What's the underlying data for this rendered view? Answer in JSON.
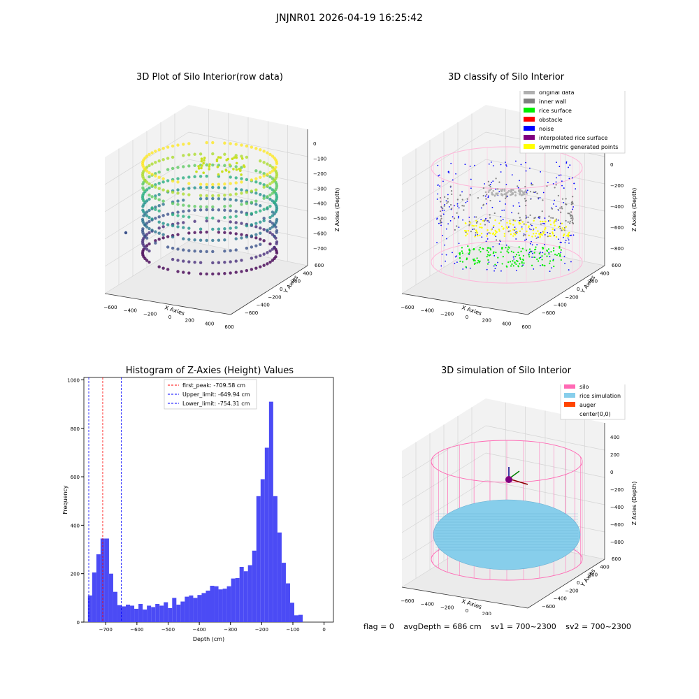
{
  "header": {
    "title": "JNJNR01 2026-04-19 16:25:42"
  },
  "chart_data": [
    {
      "type": "scatter",
      "title": "3D Plot of Silo Interior(row data)",
      "xlabel": "X Axies",
      "ylabel": "Y Axies",
      "zlabel": "Z Axies (Depth)",
      "x_ticks": [
        "−600",
        "−400",
        "−200",
        "0",
        "200",
        "400",
        "600"
      ],
      "y_ticks": [
        "−600",
        "−400",
        "−200",
        "0",
        "200",
        "400",
        "600"
      ],
      "z_ticks": [
        "0",
        "−100",
        "−200",
        "−300",
        "−400",
        "−500",
        "−600",
        "−700"
      ],
      "colormap": "viridis",
      "grid": true
    },
    {
      "type": "scatter",
      "title": "3D classify of Silo Interior",
      "xlabel": "X Axies",
      "ylabel": "Y Axies",
      "zlabel": "Z Axies (Depth)",
      "x_ticks": [
        "−600",
        "−400",
        "−200",
        "0",
        "200",
        "400",
        "600"
      ],
      "y_ticks": [
        "−600",
        "−400",
        "−200",
        "0",
        "200",
        "400",
        "600"
      ],
      "z_ticks": [
        "200",
        "0",
        "−200",
        "−400",
        "−600",
        "−800"
      ],
      "legend_position": "top-right",
      "legend": [
        {
          "label": "original data",
          "color": "#b0b0b0"
        },
        {
          "label": "inner wall",
          "color": "#808080"
        },
        {
          "label": "rice surface",
          "color": "#00ee00"
        },
        {
          "label": "obstacle",
          "color": "#ff0000"
        },
        {
          "label": "noise",
          "color": "#0000ff"
        },
        {
          "label": "interpolated rice surface",
          "color": "#800080"
        },
        {
          "label": "symmetric generated points",
          "color": "#ffff00"
        }
      ]
    },
    {
      "type": "bar",
      "title": "Histogram of Z-Axies (Height) Values",
      "xlabel": "Depth (cm)",
      "ylabel": "Frequency",
      "xlim": [
        -770,
        30
      ],
      "ylim": [
        0,
        1010
      ],
      "x_ticks": [
        -700,
        -600,
        -500,
        -400,
        -300,
        -200,
        -100,
        0
      ],
      "x_tick_labels": [
        "−700",
        "−600",
        "−500",
        "−400",
        "−300",
        "−200",
        "−100",
        "0"
      ],
      "y_ticks": [
        0,
        200,
        400,
        600,
        800,
        1000
      ],
      "bar_color": "#4b4bf5",
      "bin_start": -757,
      "bin_width": 13.5,
      "values": [
        110,
        205,
        280,
        345,
        345,
        200,
        125,
        70,
        65,
        72,
        68,
        55,
        75,
        52,
        68,
        62,
        75,
        68,
        82,
        58,
        100,
        72,
        85,
        105,
        110,
        100,
        112,
        120,
        130,
        150,
        148,
        135,
        138,
        148,
        180,
        182,
        228,
        210,
        235,
        295,
        520,
        590,
        720,
        910,
        520,
        370,
        245,
        160,
        80,
        28,
        30
      ],
      "lines": [
        {
          "label": "first_peak: -709.58 cm",
          "x": -709.58,
          "color": "#ff0000"
        },
        {
          "label": "Upper_limit: -649.94 cm",
          "x": -649.94,
          "color": "#0000ff"
        },
        {
          "label": "Lower_limit: -754.31 cm",
          "x": -754.31,
          "color": "#0000ff"
        }
      ],
      "legend_position": "top-center"
    },
    {
      "type": "scatter",
      "title": "3D simulation of Silo Interior",
      "xlabel": "X Axies",
      "ylabel": "Y Axies",
      "zlabel": "Z Axies (Depth)",
      "x_ticks": [
        "−600",
        "−400",
        "−200",
        "0",
        "200",
        "400",
        "600"
      ],
      "y_ticks": [
        "−600",
        "−400",
        "−200",
        "0",
        "200",
        "400",
        "600"
      ],
      "z_ticks": [
        "400",
        "200",
        "0",
        "−200",
        "−400",
        "−600",
        "−800"
      ],
      "legend_position": "top-right",
      "legend": [
        {
          "label": "silo",
          "color": "#ff69b4"
        },
        {
          "label": "rice simulation",
          "color": "#87ceeb"
        },
        {
          "label": "auger",
          "color": "#ff4500"
        },
        {
          "label": "center(0,0)",
          "color": ""
        }
      ]
    }
  ],
  "footer": {
    "flag": "flag = 0",
    "avg": "avgDepth = 686 cm",
    "sv1": "sv1 = 700~2300",
    "sv2": "sv2 = 700~2300"
  }
}
